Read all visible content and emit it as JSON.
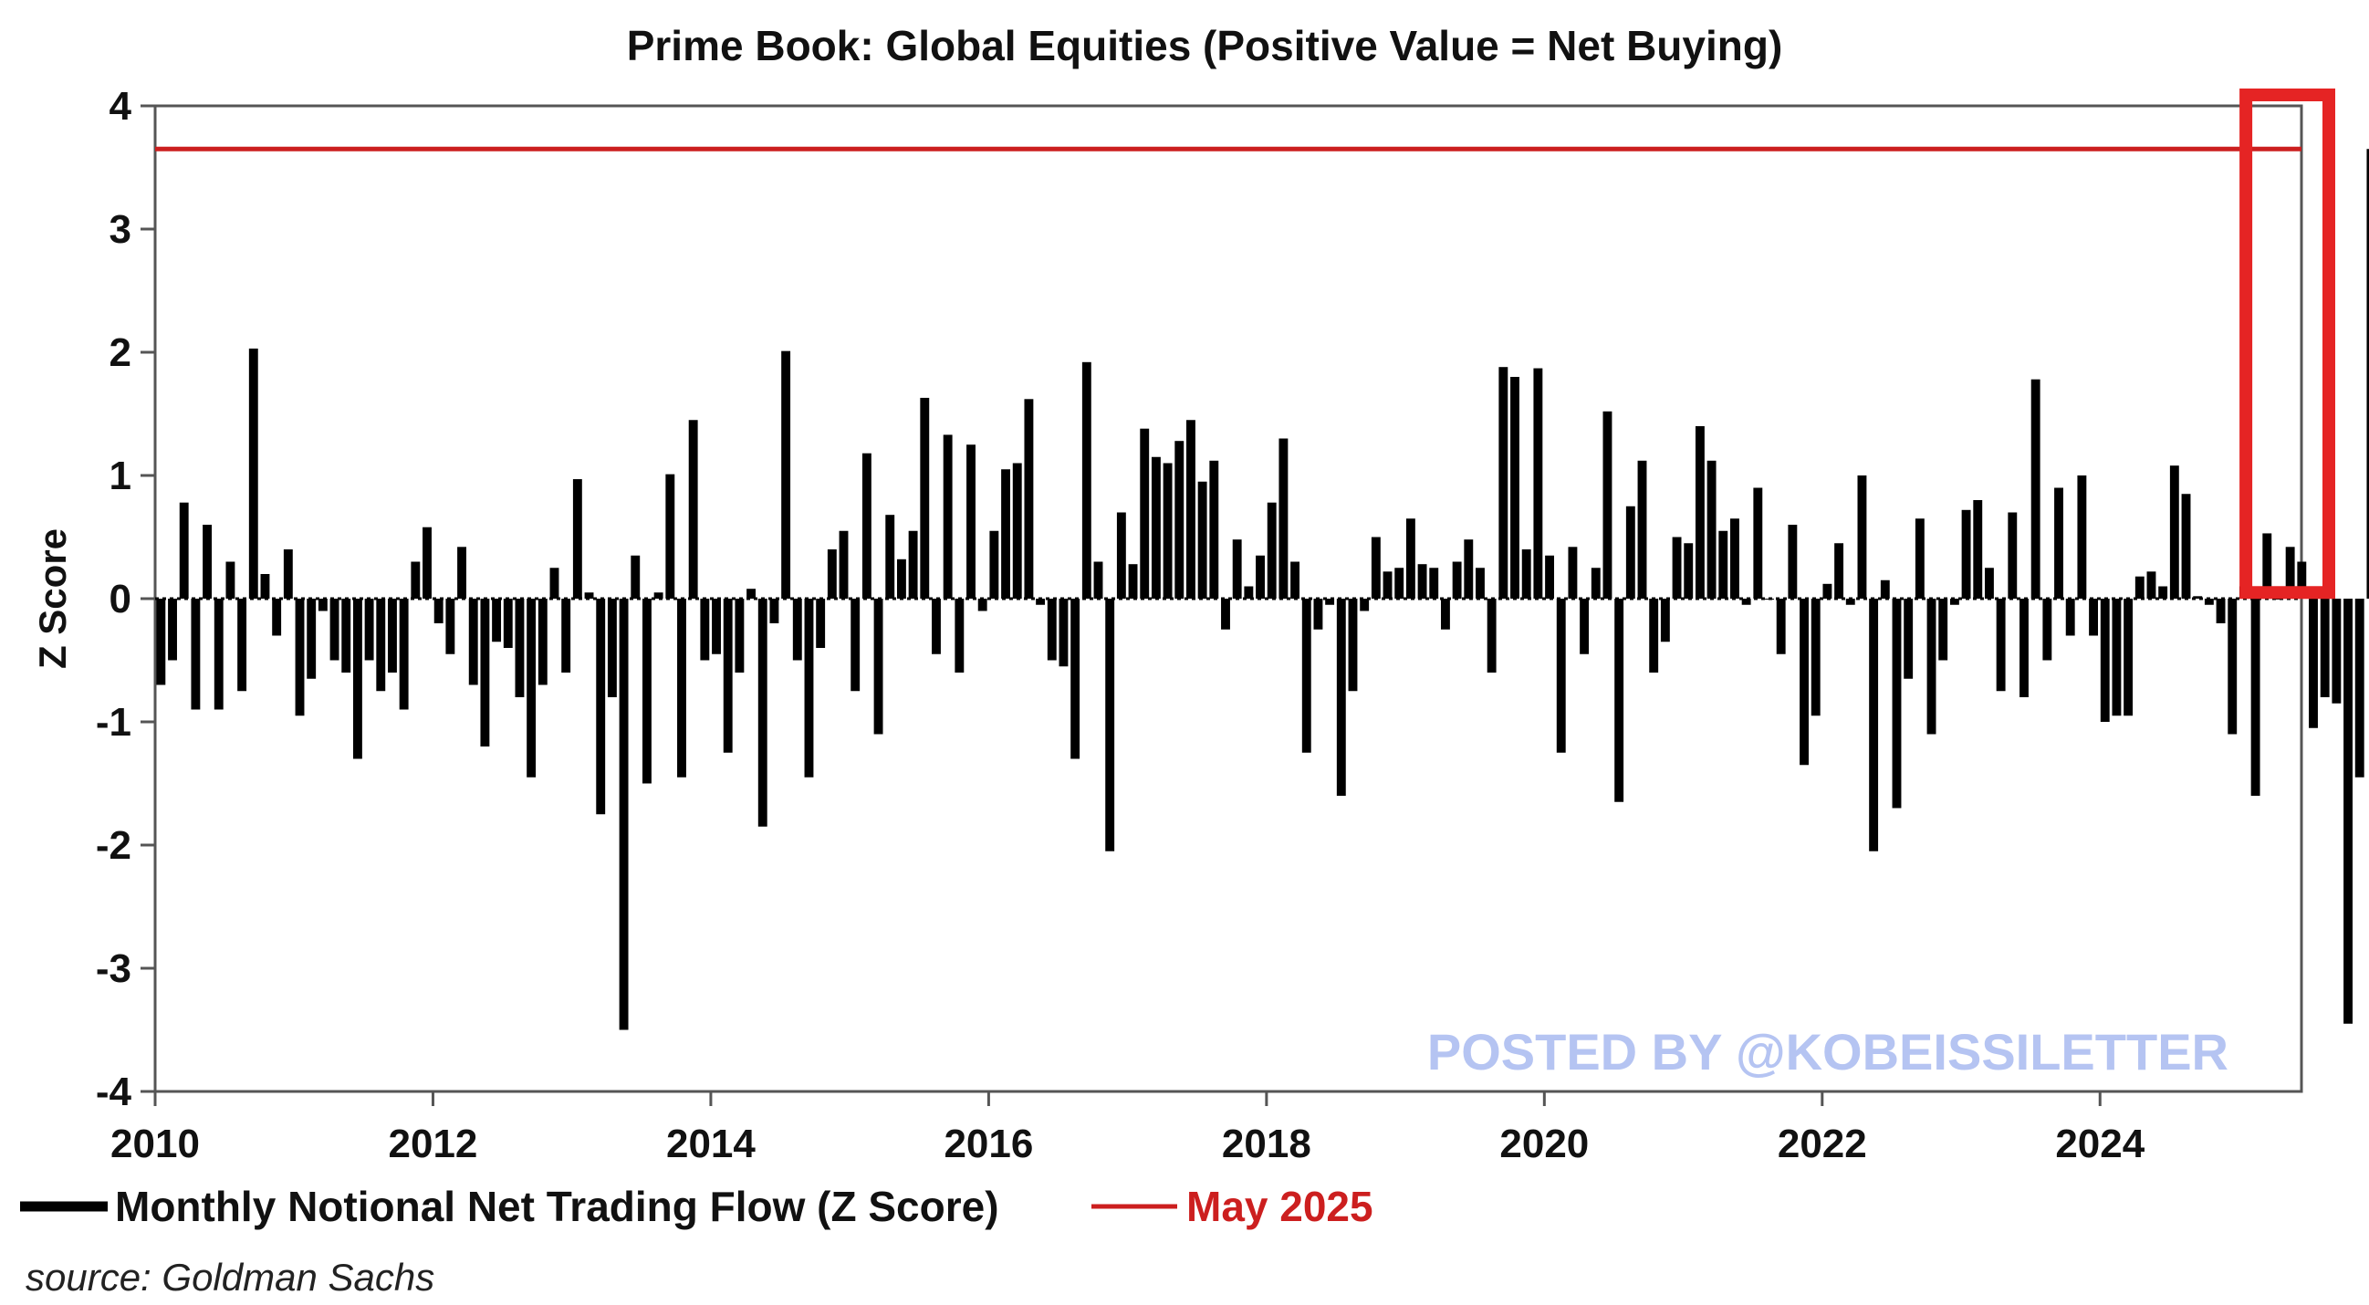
{
  "chart_data": {
    "type": "bar",
    "title": "Prime Book: Global Equities (Positive Value = Net Buying)",
    "xlabel": "",
    "ylabel": "Z Score",
    "x_start": 2010.0,
    "x_step": 0.0833,
    "xlim": [
      2010,
      2025.45
    ],
    "ylim": [
      -4,
      4
    ],
    "xticks": [
      2010,
      2012,
      2014,
      2016,
      2018,
      2020,
      2022,
      2024
    ],
    "yticks": [
      4,
      3,
      2,
      1,
      0,
      -1,
      -2,
      -3,
      -4
    ],
    "grid": false,
    "legend_position": "bottom-left",
    "series": [
      {
        "name": "Monthly Notional Net Trading Flow (Z Score)",
        "color": "#000000",
        "values": [
          -0.7,
          -0.5,
          0.78,
          -0.9,
          0.6,
          -0.9,
          0.3,
          -0.75,
          2.03,
          0.2,
          -0.3,
          0.4,
          -0.95,
          -0.65,
          -0.1,
          -0.5,
          -0.6,
          -1.3,
          -0.5,
          -0.75,
          -0.6,
          -0.9,
          0.3,
          0.58,
          -0.2,
          -0.45,
          0.42,
          -0.7,
          -1.2,
          -0.35,
          -0.4,
          -0.8,
          -1.45,
          -0.7,
          0.25,
          -0.6,
          0.97,
          0.05,
          -1.75,
          -0.8,
          -3.5,
          0.35,
          -1.5,
          0.05,
          1.01,
          -1.45,
          1.45,
          -0.5,
          -0.45,
          -1.25,
          -0.6,
          0.08,
          -1.85,
          -0.2,
          2.01,
          -0.5,
          -1.45,
          -0.4,
          0.4,
          0.55,
          -0.75,
          1.18,
          -1.1,
          0.68,
          0.32,
          0.55,
          1.63,
          -0.45,
          1.33,
          -0.6,
          1.25,
          -0.1,
          0.55,
          1.05,
          1.1,
          1.62,
          -0.05,
          -0.5,
          -0.55,
          -1.3,
          1.92,
          0.3,
          -2.05,
          0.7,
          0.28,
          1.38,
          1.15,
          1.1,
          1.28,
          1.45,
          0.95,
          1.12,
          -0.25,
          0.48,
          0.1,
          0.35,
          0.78,
          1.3,
          0.3,
          -1.25,
          -0.25,
          -0.05,
          -1.6,
          -0.75,
          -0.1,
          0.5,
          0.22,
          0.25,
          0.65,
          0.28,
          0.25,
          -0.25,
          0.3,
          0.48,
          0.25,
          -0.6,
          1.88,
          1.8,
          0.4,
          1.87,
          0.35,
          -1.25,
          0.42,
          -0.45,
          0.25,
          1.52,
          -1.65,
          0.75,
          1.12,
          -0.6,
          -0.35,
          0.5,
          0.45,
          1.4,
          1.12,
          0.55,
          0.65,
          -0.05,
          0.9,
          0.0,
          -0.45,
          0.6,
          -1.35,
          -0.95,
          0.12,
          0.45,
          -0.05,
          1.0,
          -2.05,
          0.15,
          -1.7,
          -0.65,
          0.65,
          -1.1,
          -0.5,
          -0.05,
          0.72,
          0.8,
          0.25,
          -0.75,
          0.7,
          -0.8,
          1.78,
          -0.5,
          0.9,
          -0.3,
          1.0,
          -0.3,
          -1.0,
          -0.95,
          -0.95,
          0.18,
          0.22,
          0.1,
          1.08,
          0.85,
          0.02,
          -0.05,
          -0.2,
          -1.1,
          0.1,
          -1.6,
          0.53,
          0.0,
          0.42,
          0.3,
          -1.05,
          -0.8,
          -0.85,
          -3.45,
          -1.45,
          3.65
        ]
      },
      {
        "name": "May 2025",
        "color": "#cc1f1f",
        "value": 3.65
      }
    ],
    "annotations": [
      {
        "type": "highlight-box",
        "label": "May 2025 highlight",
        "color": "#e52424",
        "x_range": [
          2025.05,
          2025.45
        ],
        "y_range": [
          0.05,
          4
        ]
      }
    ]
  },
  "legend": {
    "flow_label": "Monthly Notional Net Trading Flow (Z Score)",
    "may_label": "May 2025"
  },
  "watermark": "POSTED BY @KOBEISSILETTER",
  "source": "source: Goldman Sachs",
  "colors": {
    "bars": "#000000",
    "reference_line": "#cc1f1f",
    "highlight_box": "#e52424",
    "watermark": "#b5c4f2"
  }
}
